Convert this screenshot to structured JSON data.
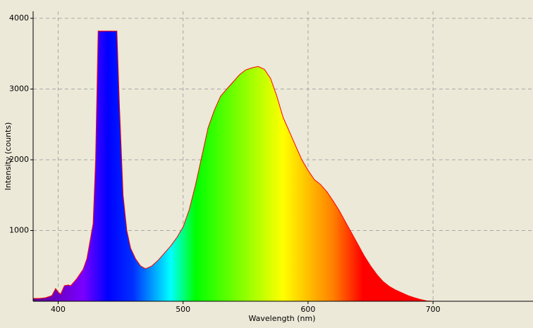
{
  "chart_data": {
    "type": "area",
    "x_label": "Wavelength (nm)",
    "y_label": "Intensity (counts)",
    "x": [
      380,
      385,
      390,
      395,
      398,
      400,
      402,
      405,
      408,
      410,
      413,
      415,
      418,
      420,
      423,
      425,
      428,
      430,
      432,
      447,
      449,
      452,
      455,
      458,
      462,
      466,
      470,
      475,
      480,
      485,
      490,
      495,
      500,
      505,
      510,
      515,
      520,
      525,
      530,
      535,
      540,
      545,
      550,
      555,
      560,
      565,
      570,
      575,
      580,
      585,
      590,
      595,
      600,
      605,
      610,
      615,
      620,
      625,
      630,
      635,
      640,
      645,
      650,
      655,
      660,
      665,
      670,
      675,
      680,
      685,
      690,
      695,
      700,
      780
    ],
    "values": [
      40,
      40,
      50,
      80,
      180,
      130,
      100,
      220,
      230,
      220,
      280,
      320,
      400,
      450,
      600,
      800,
      1100,
      2000,
      3820,
      3820,
      2800,
      1500,
      1000,
      750,
      600,
      500,
      460,
      500,
      580,
      680,
      780,
      900,
      1050,
      1300,
      1650,
      2050,
      2450,
      2700,
      2900,
      3000,
      3100,
      3200,
      3270,
      3300,
      3320,
      3280,
      3150,
      2900,
      2600,
      2400,
      2200,
      2000,
      1850,
      1720,
      1650,
      1550,
      1420,
      1280,
      1120,
      960,
      800,
      640,
      500,
      380,
      280,
      210,
      160,
      120,
      80,
      50,
      25,
      5,
      0,
      0
    ],
    "color": "#ff0000",
    "xlim": [
      380,
      780
    ],
    "ylim": [
      0,
      4100
    ],
    "xticks": [
      400,
      500,
      600,
      700
    ],
    "yticks": [
      1000,
      2000,
      3000,
      4000
    ],
    "grid": true
  }
}
